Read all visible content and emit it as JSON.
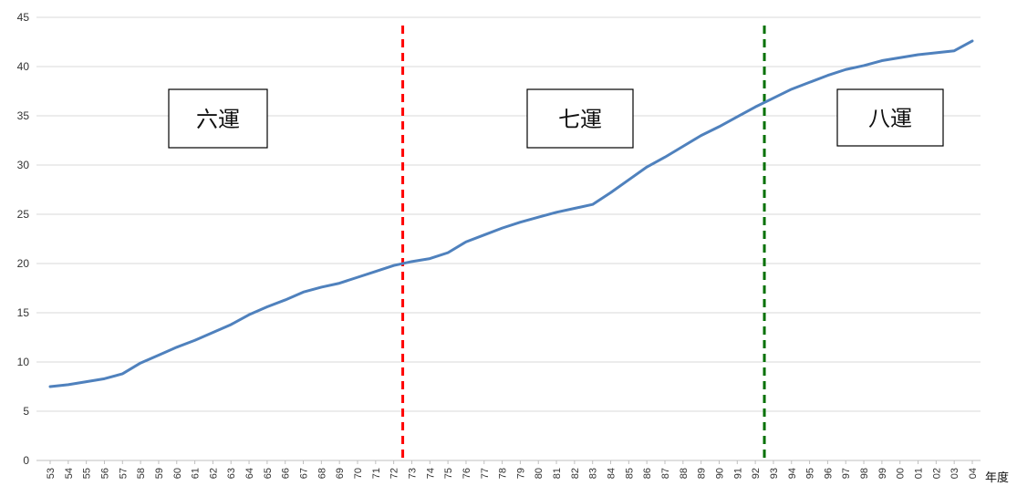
{
  "chart_data": {
    "type": "line",
    "xlabel": "年度",
    "ylabel": "",
    "title": "",
    "ylim": [
      0,
      45
    ],
    "yticks": [
      0,
      5,
      10,
      15,
      20,
      25,
      30,
      35,
      40,
      45
    ],
    "grid": "horizontal",
    "categories": [
      "53",
      "54",
      "55",
      "56",
      "57",
      "58",
      "59",
      "60",
      "61",
      "62",
      "63",
      "64",
      "65",
      "66",
      "67",
      "68",
      "69",
      "70",
      "71",
      "72",
      "73",
      "74",
      "75",
      "76",
      "77",
      "78",
      "79",
      "80",
      "81",
      "82",
      "83",
      "84",
      "85",
      "86",
      "87",
      "88",
      "89",
      "90",
      "91",
      "92",
      "93",
      "94",
      "95",
      "96",
      "97",
      "98",
      "99",
      "00",
      "01",
      "02",
      "03",
      "04"
    ],
    "series": [
      {
        "color": "#4F81BD",
        "values": [
          7.5,
          7.7,
          8.0,
          8.3,
          8.8,
          9.9,
          10.7,
          11.5,
          12.2,
          13.0,
          13.8,
          14.8,
          15.6,
          16.3,
          17.1,
          17.6,
          18.0,
          18.6,
          19.2,
          19.8,
          20.2,
          20.5,
          21.1,
          22.2,
          22.9,
          23.6,
          24.2,
          24.7,
          25.2,
          25.6,
          26.0,
          27.2,
          28.5,
          29.8,
          30.8,
          31.9,
          33.0,
          33.9,
          34.9,
          35.9,
          36.8,
          37.7,
          38.4,
          39.1,
          39.7,
          40.1,
          40.6,
          40.9,
          41.2,
          41.4,
          41.6,
          42.6
        ]
      }
    ],
    "dividers": [
      {
        "after_category": "72",
        "color": "#FF0000"
      },
      {
        "after_category": "92",
        "color": "#007000"
      }
    ],
    "annotations": [
      "六運",
      "七運",
      "八運"
    ]
  }
}
